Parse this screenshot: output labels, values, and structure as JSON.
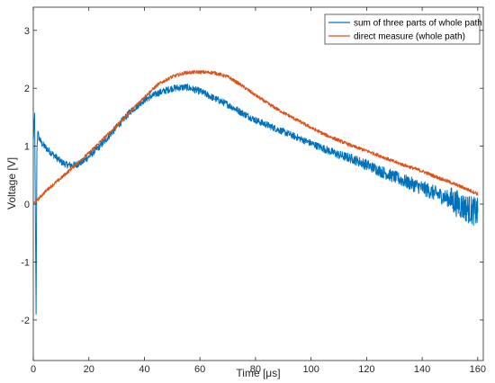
{
  "chart_data": {
    "type": "line",
    "xlabel": "Time [μs]",
    "ylabel": "Voltage [V]",
    "xlim": [
      0,
      162
    ],
    "ylim": [
      -2.7,
      3.4
    ],
    "xticks": [
      "0",
      "20",
      "40",
      "60",
      "80",
      "100",
      "120",
      "140",
      "160"
    ],
    "yticks": [
      "-2",
      "-1",
      "0",
      "1",
      "2",
      "3"
    ],
    "grid": false,
    "legend_position": "top-right",
    "series": [
      {
        "name": "sum of three parts of whole path",
        "color": "#0072BD",
        "noise": 0.06,
        "x": [
          0,
          0.5,
          1,
          1.3,
          1.6,
          2,
          3,
          5,
          8,
          10,
          12,
          14,
          16,
          18,
          20,
          25,
          30,
          35,
          40,
          45,
          50,
          55,
          60,
          65,
          70,
          75,
          80,
          85,
          90,
          95,
          100,
          105,
          110,
          115,
          120,
          125,
          130,
          135,
          140,
          145,
          150,
          155,
          160
        ],
        "y": [
          1.1,
          1.55,
          -1.9,
          0.9,
          1.25,
          1.15,
          1.05,
          0.95,
          0.82,
          0.73,
          0.68,
          0.67,
          0.69,
          0.74,
          0.82,
          1.05,
          1.33,
          1.6,
          1.8,
          1.92,
          2.0,
          2.02,
          1.95,
          1.83,
          1.72,
          1.58,
          1.45,
          1.35,
          1.25,
          1.15,
          1.05,
          0.95,
          0.85,
          0.78,
          0.68,
          0.57,
          0.47,
          0.37,
          0.28,
          0.18,
          0.08,
          -0.05,
          -0.15
        ]
      },
      {
        "name": "direct measure (whole path)",
        "color": "#D95319",
        "noise": 0.03,
        "x": [
          0,
          2,
          5,
          10,
          15,
          20,
          25,
          30,
          35,
          40,
          45,
          50,
          55,
          60,
          65,
          70,
          75,
          80,
          85,
          90,
          95,
          100,
          105,
          110,
          115,
          120,
          125,
          130,
          135,
          140,
          145,
          150,
          155,
          160
        ],
        "y": [
          0.0,
          0.1,
          0.25,
          0.45,
          0.67,
          0.88,
          1.12,
          1.35,
          1.6,
          1.85,
          2.07,
          2.2,
          2.27,
          2.28,
          2.27,
          2.2,
          2.05,
          1.88,
          1.72,
          1.58,
          1.45,
          1.32,
          1.2,
          1.1,
          1.0,
          0.92,
          0.83,
          0.73,
          0.65,
          0.57,
          0.47,
          0.38,
          0.28,
          0.18
        ]
      }
    ]
  }
}
